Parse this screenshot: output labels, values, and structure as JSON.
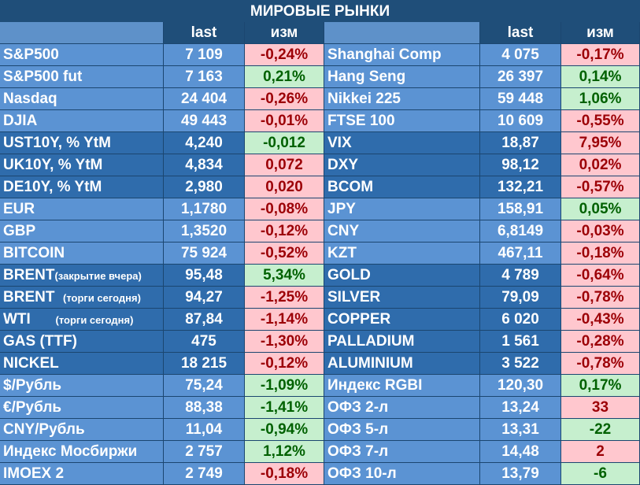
{
  "title": "МИРОВЫЕ РЫНКИ",
  "headers": {
    "last": "last",
    "chg": "изм"
  },
  "colors": {
    "positive_bg": "#c6efce",
    "positive_text": "#006100",
    "negative_bg": "#ffc7ce",
    "negative_text": "#9c0006",
    "header_bg": "#1f4e79",
    "cell_light": "#5b93d3",
    "cell_dark": "#2f6cac"
  },
  "groups": [
    {
      "shade": "light",
      "rows": [
        {
          "l_name": "S&P500",
          "l_val": "7 109",
          "l_chg": "-0,24%",
          "l_dir": "neg",
          "r_name": "Shanghai Comp",
          "r_val": "4 075",
          "r_chg": "-0,17%",
          "r_dir": "neg"
        },
        {
          "l_name": "S&P500 fut",
          "l_val": "7 163",
          "l_chg": "0,21%",
          "l_dir": "pos",
          "r_name": "Hang Seng",
          "r_val": "26 397",
          "r_chg": "0,14%",
          "r_dir": "pos"
        },
        {
          "l_name": "Nasdaq",
          "l_val": "24 404",
          "l_chg": "-0,26%",
          "l_dir": "neg",
          "r_name": "Nikkei 225",
          "r_val": "59 448",
          "r_chg": "1,06%",
          "r_dir": "pos"
        },
        {
          "l_name": "DJIA",
          "l_val": "49 443",
          "l_chg": "-0,01%",
          "l_dir": "neg",
          "r_name": "FTSE 100",
          "r_val": "10 609",
          "r_chg": "-0,55%",
          "r_dir": "neg"
        }
      ]
    },
    {
      "shade": "dark",
      "rows": [
        {
          "l_name": "UST10Y, % YtM",
          "l_val": "4,240",
          "l_chg": "-0,012",
          "l_dir": "pos",
          "r_name": "VIX",
          "r_val": "18,87",
          "r_chg": "7,95%",
          "r_dir": "neg"
        },
        {
          "l_name": "UK10Y, % YtM",
          "l_val": "4,834",
          "l_chg": "0,072",
          "l_dir": "neg",
          "r_name": "DXY",
          "r_val": "98,12",
          "r_chg": "0,02%",
          "r_dir": "neg"
        },
        {
          "l_name": "DE10Y, % YtM",
          "l_val": "2,980",
          "l_chg": "0,020",
          "l_dir": "neg",
          "r_name": "BCOM",
          "r_val": "132,21",
          "r_chg": "-0,57%",
          "r_dir": "neg"
        }
      ]
    },
    {
      "shade": "light",
      "rows": [
        {
          "l_name": "EUR",
          "l_val": "1,1780",
          "l_chg": "-0,08%",
          "l_dir": "neg",
          "r_name": "JPY",
          "r_val": "158,91",
          "r_chg": "0,05%",
          "r_dir": "pos"
        },
        {
          "l_name": "GBP",
          "l_val": "1,3520",
          "l_chg": "-0,12%",
          "l_dir": "neg",
          "r_name": "CNY",
          "r_val": "6,8149",
          "r_chg": "-0,03%",
          "r_dir": "neg"
        },
        {
          "l_name": "BITCOIN",
          "l_val": "75 924",
          "l_chg": "-0,52%",
          "l_dir": "neg",
          "r_name": "KZT",
          "r_val": "467,11",
          "r_chg": "-0,18%",
          "r_dir": "neg"
        }
      ]
    },
    {
      "shade": "dark",
      "rows": [
        {
          "l_name": "BRENT",
          "l_note": "(закрытие вчера)",
          "l_val": "95,48",
          "l_chg": "5,34%",
          "l_dir": "pos",
          "r_name": "GOLD",
          "r_val": "4 789",
          "r_chg": "-0,64%",
          "r_dir": "neg"
        },
        {
          "l_name": "BRENT  ",
          "l_note": "(торги сегодня)",
          "l_val": "94,27",
          "l_chg": "-1,25%",
          "l_dir": "neg",
          "r_name": "SILVER",
          "r_val": "79,09",
          "r_chg": "-0,78%",
          "r_dir": "neg"
        },
        {
          "l_name": "WTI      ",
          "l_note": "(торги сегодня)",
          "l_val": "87,84",
          "l_chg": "-1,14%",
          "l_dir": "neg",
          "r_name": "COPPER",
          "r_val": "6 020",
          "r_chg": "-0,43%",
          "r_dir": "neg"
        },
        {
          "l_name": "GAS (TTF)",
          "l_val": "475",
          "l_chg": "-1,30%",
          "l_dir": "neg",
          "r_name": "PALLADIUM",
          "r_val": "1 561",
          "r_chg": "-0,28%",
          "r_dir": "neg"
        },
        {
          "l_name": "NICKEL",
          "l_val": "18 215",
          "l_chg": "-0,12%",
          "l_dir": "neg",
          "r_name": "ALUMINIUM",
          "r_val": "3 522",
          "r_chg": "-0,78%",
          "r_dir": "neg"
        }
      ]
    },
    {
      "shade": "light",
      "rows": [
        {
          "l_name": "$/Рубль",
          "l_val": "75,24",
          "l_chg": "-1,09%",
          "l_dir": "pos",
          "r_name": "Индекс RGBI",
          "r_val": "120,30",
          "r_chg": "0,17%",
          "r_dir": "pos"
        },
        {
          "l_name": "€/Рубль",
          "l_val": "88,38",
          "l_chg": "-1,41%",
          "l_dir": "pos",
          "r_name": "ОФЗ 2-л",
          "r_val": "13,24",
          "r_chg": "33",
          "r_dir": "neg"
        },
        {
          "l_name": "CNY/Рубль",
          "l_val": "11,04",
          "l_chg": "-0,94%",
          "l_dir": "pos",
          "r_name": "ОФЗ 5-л",
          "r_val": "13,31",
          "r_chg": "-22",
          "r_dir": "pos"
        },
        {
          "l_name": "Индекс Мосбиржи",
          "l_val": "2 757",
          "l_chg": "1,12%",
          "l_dir": "pos",
          "r_name": "ОФЗ 7-л",
          "r_val": "14,48",
          "r_chg": "2",
          "r_dir": "neg"
        },
        {
          "l_name": "IMOEX 2",
          "l_val": "2 749",
          "l_chg": "-0,18%",
          "l_dir": "neg",
          "r_name": "ОФЗ 10-л",
          "r_val": "13,79",
          "r_chg": "-6",
          "r_dir": "pos"
        }
      ]
    }
  ]
}
